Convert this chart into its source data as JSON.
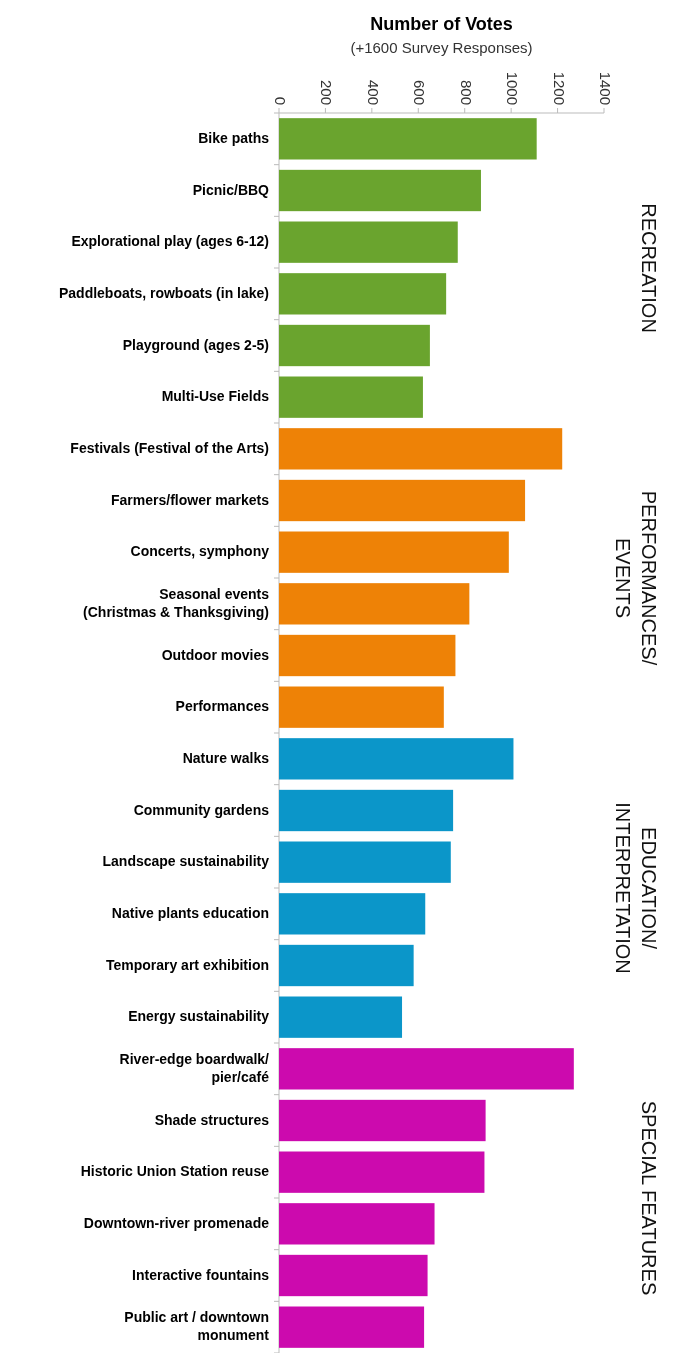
{
  "chart_data": {
    "type": "bar",
    "orientation": "horizontal",
    "title": "Number of Votes",
    "subtitle": "(+1600 Survey Responses)",
    "categories": [
      "Bike paths",
      "Picnic/BBQ",
      "Explorational play (ages 6-12)",
      "Paddleboats, rowboats (in lake)",
      "Playground (ages 2-5)",
      "Multi-Use Fields",
      "Festivals (Festival of the Arts)",
      "Farmers/flower markets",
      "Concerts, symphony",
      "Seasonal events\n(Christmas & Thanksgiving)",
      "Outdoor movies",
      "Performances",
      "Nature walks",
      "Community gardens",
      "Landscape sustainability",
      "Native plants education",
      "Temporary art exhibition",
      "Energy sustainability",
      "River-edge boardwalk/\npier/café",
      "Shade structures",
      "Historic Union Station reuse",
      "Downtown-river promenade",
      "Interactive fountains",
      "Public art / downtown\nmonument"
    ],
    "series": [
      {
        "name": "RECREATION",
        "color": "#6aa42e",
        "values": [
          1110,
          870,
          770,
          720,
          650,
          620,
          null,
          null,
          null,
          null,
          null,
          null,
          null,
          null,
          null,
          null,
          null,
          null,
          null,
          null,
          null,
          null,
          null,
          null
        ]
      },
      {
        "name": "PERFORMANCES/\nEVENTS",
        "color": "#ee8206",
        "values": [
          null,
          null,
          null,
          null,
          null,
          null,
          1220,
          1060,
          990,
          820,
          760,
          710,
          null,
          null,
          null,
          null,
          null,
          null,
          null,
          null,
          null,
          null,
          null,
          null
        ]
      },
      {
        "name": "EDUCATION/\nINTERPRETATION",
        "color": "#0b96c9",
        "values": [
          null,
          null,
          null,
          null,
          null,
          null,
          null,
          null,
          null,
          null,
          null,
          null,
          1010,
          750,
          740,
          630,
          580,
          530,
          null,
          null,
          null,
          null,
          null,
          null
        ]
      },
      {
        "name": "SPECIAL FEATURES",
        "color": "#cc0aae",
        "values": [
          null,
          null,
          null,
          null,
          null,
          null,
          null,
          null,
          null,
          null,
          null,
          null,
          null,
          null,
          null,
          null,
          null,
          null,
          1270,
          890,
          885,
          670,
          640,
          625
        ]
      }
    ],
    "xlim": [
      0,
      1400
    ],
    "xticks": [
      0,
      200,
      400,
      600,
      800,
      1000,
      1200,
      1400
    ]
  }
}
